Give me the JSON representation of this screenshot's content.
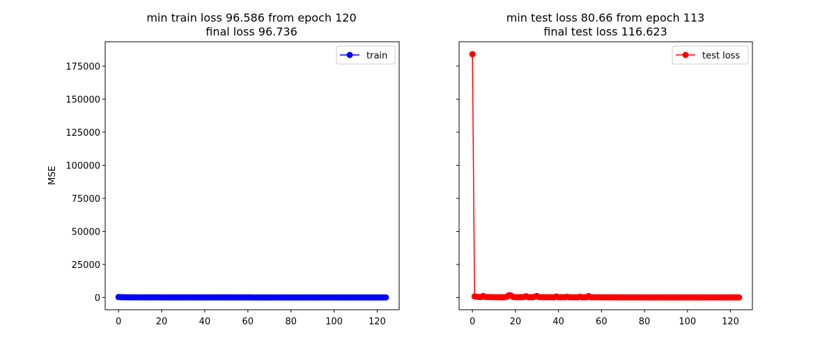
{
  "chart_data": [
    {
      "type": "line",
      "title_line1": "min train loss 96.586 from epoch 120",
      "title_line2": "final loss 96.736",
      "xlabel": "",
      "ylabel": "MSE",
      "xlim": [
        -6.2,
        130.2
      ],
      "ylim": [
        -9200,
        193400
      ],
      "xticks": [
        0,
        20,
        40,
        60,
        80,
        100,
        120
      ],
      "yticks": [
        0,
        25000,
        50000,
        75000,
        100000,
        125000,
        150000,
        175000
      ],
      "grid": false,
      "legend_position": "top-right",
      "color": "#0000ff",
      "series": [
        {
          "name": "train",
          "x": [
            0,
            1,
            2,
            3,
            4,
            5,
            6,
            7,
            8,
            9,
            10,
            11,
            12,
            13,
            14,
            15,
            16,
            17,
            18,
            19,
            20,
            21,
            22,
            23,
            24,
            25,
            26,
            27,
            28,
            29,
            30,
            31,
            32,
            33,
            34,
            35,
            36,
            37,
            38,
            39,
            40,
            41,
            42,
            43,
            44,
            45,
            46,
            47,
            48,
            49,
            50,
            51,
            52,
            53,
            54,
            55,
            56,
            57,
            58,
            59,
            60,
            61,
            62,
            63,
            64,
            65,
            66,
            67,
            68,
            69,
            70,
            71,
            72,
            73,
            74,
            75,
            76,
            77,
            78,
            79,
            80,
            81,
            82,
            83,
            84,
            85,
            86,
            87,
            88,
            89,
            90,
            91,
            92,
            93,
            94,
            95,
            96,
            97,
            98,
            99,
            100,
            101,
            102,
            103,
            104,
            105,
            106,
            107,
            108,
            109,
            110,
            111,
            112,
            113,
            114,
            115,
            116,
            117,
            118,
            119,
            120,
            121,
            122,
            123,
            124
          ],
          "y": [
            400,
            300,
            250,
            220,
            200,
            190,
            180,
            175,
            170,
            165,
            160,
            158,
            155,
            152,
            150,
            148,
            146,
            144,
            142,
            140,
            139,
            138,
            137,
            136,
            135,
            134,
            133,
            132,
            131,
            130,
            129,
            128,
            127,
            126,
            125,
            124,
            123,
            122,
            121,
            120,
            119,
            118,
            117,
            116,
            115,
            115,
            114,
            114,
            113,
            113,
            112,
            112,
            111,
            111,
            110,
            110,
            109,
            109,
            108,
            108,
            107,
            107,
            106,
            106,
            105,
            105,
            104,
            104,
            103,
            103,
            103,
            102,
            102,
            102,
            101,
            101,
            101,
            100,
            100,
            100,
            100,
            99,
            99,
            99,
            99,
            99,
            98,
            98,
            98,
            98,
            98,
            98,
            97,
            97,
            97,
            97,
            97,
            97,
            97,
            97,
            97,
            97,
            97,
            97,
            97,
            97,
            97,
            97,
            97,
            97,
            97,
            97,
            97,
            97,
            97,
            97,
            97,
            97,
            97,
            97,
            96.586,
            97,
            97,
            97,
            96.736
          ]
        }
      ]
    },
    {
      "type": "line",
      "title_line1": "min test loss 80.66 from epoch 113",
      "title_line2": "final test loss 116.623",
      "xlabel": "",
      "ylabel": "",
      "xlim": [
        -6.2,
        130.2
      ],
      "ylim": [
        -9200,
        193400
      ],
      "xticks": [
        0,
        20,
        40,
        60,
        80,
        100,
        120
      ],
      "yticks": [
        0,
        25000,
        50000,
        75000,
        100000,
        125000,
        150000,
        175000
      ],
      "grid": false,
      "legend_position": "top-right",
      "color": "#ff0000",
      "series": [
        {
          "name": "test loss",
          "x": [
            0,
            1,
            2,
            3,
            4,
            5,
            6,
            7,
            8,
            9,
            10,
            11,
            12,
            13,
            14,
            15,
            16,
            17,
            18,
            19,
            20,
            21,
            22,
            23,
            24,
            25,
            26,
            27,
            28,
            29,
            30,
            31,
            32,
            33,
            34,
            35,
            36,
            37,
            38,
            39,
            40,
            41,
            42,
            43,
            44,
            45,
            46,
            47,
            48,
            49,
            50,
            51,
            52,
            53,
            54,
            55,
            56,
            57,
            58,
            59,
            60,
            61,
            62,
            63,
            64,
            65,
            66,
            67,
            68,
            69,
            70,
            71,
            72,
            73,
            74,
            75,
            76,
            77,
            78,
            79,
            80,
            81,
            82,
            83,
            84,
            85,
            86,
            87,
            88,
            89,
            90,
            91,
            92,
            93,
            94,
            95,
            96,
            97,
            98,
            99,
            100,
            101,
            102,
            103,
            104,
            105,
            106,
            107,
            108,
            109,
            110,
            111,
            112,
            113,
            114,
            115,
            116,
            117,
            118,
            119,
            120,
            121,
            122,
            123,
            124
          ],
          "y": [
            184000,
            900,
            600,
            500,
            400,
            1200,
            500,
            400,
            350,
            300,
            300,
            280,
            260,
            250,
            240,
            230,
            600,
            1800,
            1500,
            400,
            300,
            300,
            280,
            300,
            500,
            1000,
            300,
            280,
            260,
            600,
            1200,
            400,
            300,
            280,
            260,
            250,
            240,
            230,
            220,
            800,
            300,
            250,
            240,
            230,
            600,
            250,
            230,
            220,
            210,
            200,
            600,
            220,
            210,
            200,
            1100,
            300,
            250,
            230,
            220,
            210,
            200,
            200,
            190,
            190,
            180,
            180,
            175,
            175,
            170,
            170,
            165,
            165,
            160,
            160,
            155,
            155,
            150,
            150,
            148,
            146,
            144,
            142,
            140,
            138,
            136,
            134,
            132,
            130,
            129,
            128,
            127,
            126,
            125,
            124,
            123,
            122,
            121,
            120,
            120,
            119,
            118,
            117,
            117,
            116,
            115,
            114,
            113,
            112,
            111,
            110,
            110,
            109,
            108,
            80.66,
            108,
            109,
            110,
            111,
            112,
            113,
            114,
            115,
            116,
            116,
            116.623
          ]
        }
      ]
    }
  ]
}
